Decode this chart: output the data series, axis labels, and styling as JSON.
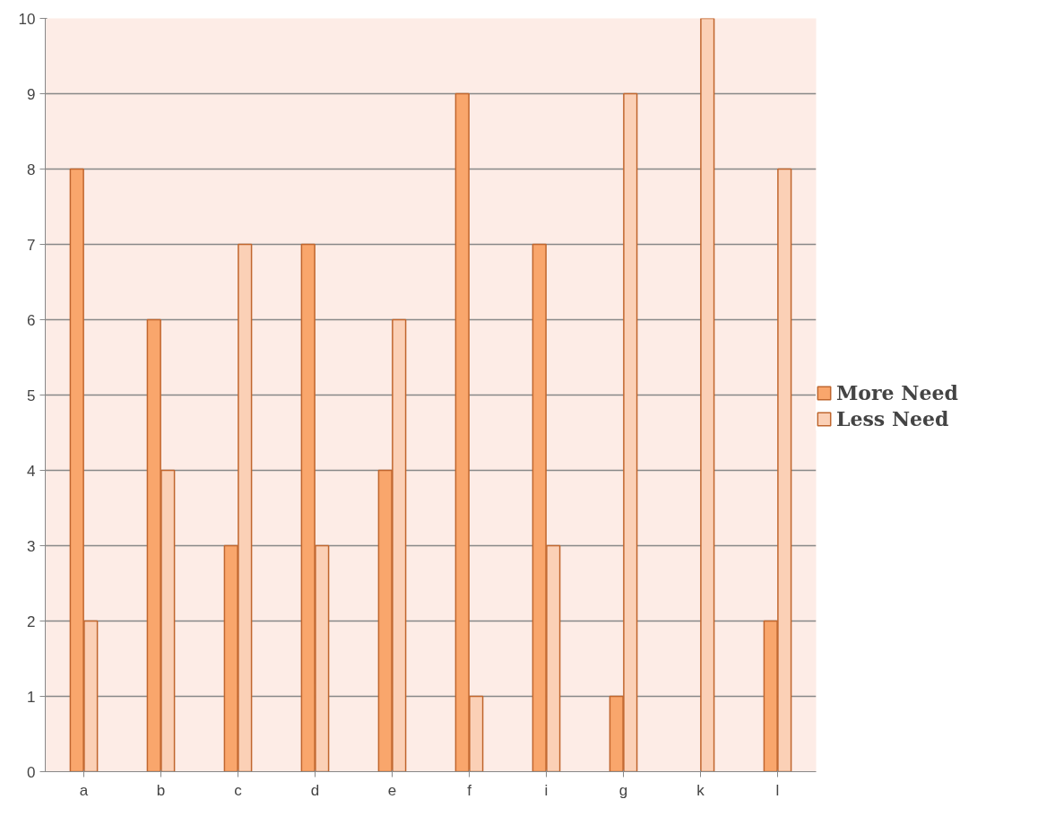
{
  "chart_data": {
    "type": "bar",
    "categories": [
      "a",
      "b",
      "c",
      "d",
      "e",
      "f",
      "i",
      "g",
      "k",
      "l"
    ],
    "series": [
      {
        "name": "More Need",
        "color": "#f9a66c",
        "values": [
          8,
          6,
          3,
          7,
          4,
          9,
          7,
          1,
          null,
          2
        ]
      },
      {
        "name": "Less Need",
        "color": "#fbd0b6",
        "values": [
          2,
          4,
          7,
          3,
          6,
          1,
          3,
          9,
          10,
          8
        ]
      }
    ],
    "ylim": [
      0,
      10
    ],
    "yticks": [
      0,
      1,
      2,
      3,
      4,
      5,
      6,
      7,
      8,
      9,
      10
    ],
    "grid": "y",
    "legend": "right"
  }
}
